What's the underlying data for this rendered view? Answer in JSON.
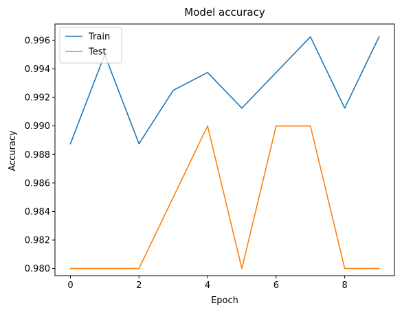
{
  "chart_data": {
    "type": "line",
    "title": "Model accuracy",
    "xlabel": "Epoch",
    "ylabel": "Accuracy",
    "x": [
      0,
      1,
      2,
      3,
      4,
      5,
      6,
      7,
      8,
      9
    ],
    "xlim": [
      -0.45,
      9.45
    ],
    "ylim": [
      0.9795,
      0.99715
    ],
    "xticks": [
      0,
      2,
      4,
      6,
      8
    ],
    "yticks": [
      0.98,
      0.982,
      0.984,
      0.986,
      0.988,
      0.99,
      0.992,
      0.994,
      0.996
    ],
    "yticklabels": [
      "0.980",
      "0.982",
      "0.984",
      "0.986",
      "0.988",
      "0.990",
      "0.992",
      "0.994",
      "0.996"
    ],
    "grid": false,
    "legend_position": "top-left",
    "series": [
      {
        "name": "Train",
        "color": "#1f77b4",
        "values": [
          0.98875,
          0.995,
          0.98875,
          0.9925,
          0.99375,
          0.99125,
          0.99375,
          0.99625,
          0.99125,
          0.99625
        ]
      },
      {
        "name": "Test",
        "color": "#ff7f0e",
        "values": [
          0.98,
          0.98,
          0.98,
          0.985,
          0.99,
          0.98,
          0.99,
          0.99,
          0.98,
          0.98
        ]
      }
    ]
  }
}
